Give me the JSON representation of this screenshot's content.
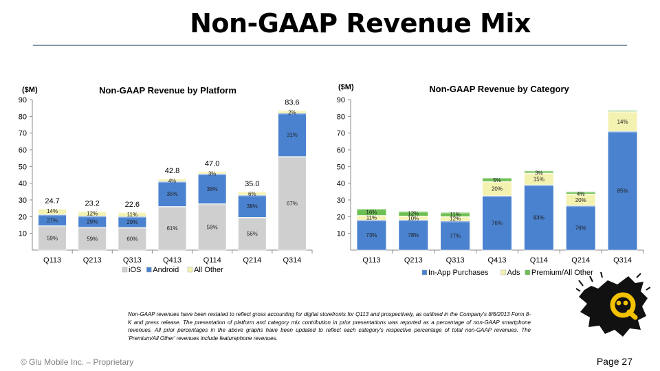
{
  "page": {
    "title": "Non-GAAP Revenue Mix",
    "footer": "© Glu Mobile Inc. – Proprietary",
    "page_number": "Page 27",
    "note": "Non-GAAP revenues have been restated to reflect gross accounting for digital storefronts for Q113 and prospectively, as outlined in the Company's 8/6/2013 Form 8-K and press release. The presentation of platform and category mix contribution in prior presentations was reported as a percentage of non-GAAP smartphone revenues. All prior percentages in the above graphs have been updated to reflect each category's respective percentage of total non-GAAP revenues. The 'Premium/All Other' revenues include featurephone revenues."
  },
  "colors": {
    "ios": "#cfcfcf",
    "android": "#4a82cf",
    "all_other": "#f4f2b0",
    "in_app": "#4a82cf",
    "ads": "#f4f2b0",
    "premium": "#6cbf52",
    "title_rule": "#8597a8"
  },
  "chart_data": [
    {
      "type": "bar",
      "stacked": true,
      "title": "Non-GAAP Revenue by Platform",
      "unit_label": "($M)",
      "ylim": [
        0,
        90
      ],
      "yticks": [
        "10",
        "20",
        "30",
        "40",
        "50",
        "60",
        "70",
        "80",
        "90"
      ],
      "categories": [
        "Q113",
        "Q213",
        "Q313",
        "Q413",
        "Q114",
        "Q214",
        "Q314"
      ],
      "totals": [
        24.7,
        23.2,
        22.6,
        42.8,
        47.0,
        35.0,
        83.6
      ],
      "total_labels": [
        "24.7",
        "23.2",
        "22.6",
        "42.8",
        "47.0",
        "35.0",
        "83.6"
      ],
      "series": [
        {
          "name": "iOS",
          "color_key": "ios",
          "shares": [
            59,
            59,
            60,
            61,
            59,
            56,
            67
          ],
          "labels": [
            "59%",
            "59%",
            "60%",
            "61%",
            "59%",
            "56%",
            "67%"
          ]
        },
        {
          "name": "Android",
          "color_key": "android",
          "shares": [
            27,
            29,
            29,
            35,
            38,
            38,
            31
          ],
          "labels": [
            "27%",
            "29%",
            "29%",
            "35%",
            "38%",
            "38%",
            "31%"
          ]
        },
        {
          "name": "All Other",
          "color_key": "all_other",
          "shares": [
            14,
            12,
            11,
            4,
            3,
            6,
            2
          ],
          "labels": [
            "14%",
            "12%",
            "11%",
            "4%",
            "3%",
            "6%",
            "2%"
          ]
        }
      ],
      "legend_position": "bottom",
      "grid": false
    },
    {
      "type": "bar",
      "stacked": true,
      "title": "Non-GAAP Revenue by Category",
      "unit_label": "($M)",
      "ylim": [
        0,
        90
      ],
      "yticks": [
        "10",
        "20",
        "30",
        "40",
        "50",
        "60",
        "70",
        "80",
        "90"
      ],
      "categories": [
        "Q113",
        "Q213",
        "Q313",
        "Q413",
        "Q114",
        "Q214",
        "Q314"
      ],
      "totals": [
        24.7,
        23.2,
        22.6,
        42.8,
        47.0,
        35.0,
        83.6
      ],
      "series": [
        {
          "name": "In-App Purchases",
          "color_key": "in_app",
          "shares": [
            73,
            78,
            77,
            76,
            83,
            76,
            85
          ],
          "labels": [
            "73%",
            "78%",
            "77%",
            "76%",
            "83%",
            "76%",
            "85%"
          ]
        },
        {
          "name": "Ads",
          "color_key": "ads",
          "shares": [
            11,
            10,
            12,
            20,
            15,
            20,
            14
          ],
          "labels": [
            "11%",
            "10%",
            "12%",
            "20%",
            "15%",
            "20%",
            "14%"
          ]
        },
        {
          "name": "Premium/All Other",
          "color_key": "premium",
          "shares": [
            16,
            12,
            11,
            5,
            3,
            4,
            1
          ],
          "labels": [
            "16%",
            "12%",
            "11%",
            "5%",
            "3%",
            "4%",
            ""
          ]
        }
      ],
      "legend_position": "bottom",
      "grid": false
    }
  ]
}
